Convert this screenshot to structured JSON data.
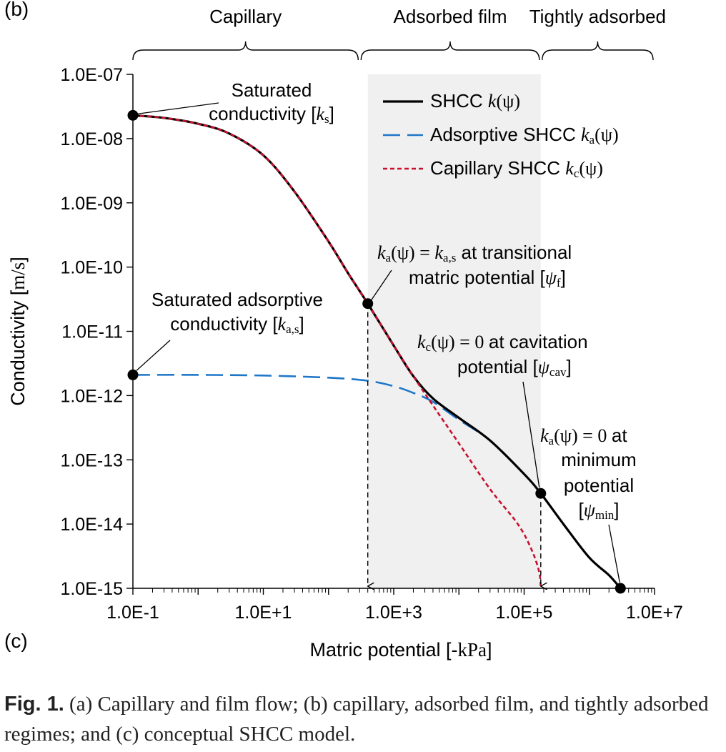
{
  "panel_label_top": "(b)",
  "panel_label_bottom": "(c)",
  "regimes": [
    {
      "label": "Capillary",
      "from": 0.1,
      "to": 300
    },
    {
      "label": "Adsorbed film",
      "from": 300,
      "to": 180000
    },
    {
      "label": "Tightly adsorbed",
      "from": 180000,
      "to": 10000000
    }
  ],
  "colors": {
    "shcc": "#000000",
    "adsorptive": "#1f77c8",
    "capillary": "#c8102e",
    "shade": "#f0f0f0"
  },
  "chart_data": {
    "type": "line",
    "title": "",
    "xlabel": "Matric potential [-kPa]",
    "ylabel": "Conductivity [m/s]",
    "xscale": "log",
    "yscale": "log",
    "xlim": [
      0.1,
      10000000
    ],
    "ylim": [
      1e-15,
      1e-07
    ],
    "x_ticks": [
      0.1,
      10,
      1000,
      100000,
      10000000
    ],
    "x_tick_labels": [
      "1.0E-1",
      "1.0E+1",
      "1.0E+3",
      "1.0E+5",
      "1.0E+7"
    ],
    "y_ticks": [
      1e-15,
      1e-14,
      1e-13,
      1e-12,
      1e-11,
      1e-10,
      1e-09,
      1e-08,
      1e-07
    ],
    "y_tick_labels": [
      "1.0E-15",
      "1.0E-14",
      "1.0E-13",
      "1.0E-12",
      "1.0E-11",
      "1.0E-10",
      "1.0E-09",
      "1.0E-08",
      "1.0E-07"
    ],
    "grid": false,
    "legend_position": "top-right",
    "shaded_region": {
      "x": [
        400,
        180000
      ]
    },
    "series": [
      {
        "name": "SHCC k(ψ)",
        "style": "solid",
        "x": [
          0.1,
          0.3,
          1,
          3,
          10,
          30,
          100,
          200,
          400,
          1000,
          2000,
          4000,
          10000,
          30000,
          100000,
          180000,
          400000,
          1000000,
          2000000,
          3000000
        ],
        "y": [
          2.3e-08,
          2.1e-08,
          1.7e-08,
          1.2e-08,
          5.5e-09,
          1.5e-09,
          2.5e-10,
          8e-11,
          2.7e-11,
          6e-12,
          2e-12,
          9e-13,
          4.5e-13,
          2e-13,
          6e-14,
          3e-14,
          1e-14,
          3e-15,
          1.6e-15,
          1e-15
        ]
      },
      {
        "name": "Adsorptive SHCC ka(ψ)",
        "style": "dashed",
        "x": [
          0.1,
          1,
          10,
          100,
          400,
          1000,
          2000,
          4000,
          10000,
          30000,
          100000,
          180000
        ],
        "y": [
          2.1e-12,
          2.1e-12,
          2.05e-12,
          1.9e-12,
          1.7e-12,
          1.4e-12,
          1.1e-12,
          8e-13,
          4.2e-13,
          2e-13,
          6e-14,
          3e-14
        ]
      },
      {
        "name": "Capillary SHCC kc(ψ)",
        "style": "dotted",
        "x": [
          0.1,
          0.3,
          1,
          3,
          10,
          30,
          100,
          200,
          400,
          1000,
          2000,
          4000,
          10000,
          30000,
          80000,
          130000,
          170000,
          180000
        ],
        "y": [
          2.3e-08,
          2.1e-08,
          1.7e-08,
          1.2e-08,
          5.5e-09,
          1.5e-09,
          2.5e-10,
          8e-11,
          2.7e-11,
          6e-12,
          2e-12,
          7e-13,
          1.8e-13,
          3.5e-14,
          1e-14,
          4e-15,
          1.8e-15,
          1e-15
        ]
      }
    ],
    "markers": [
      {
        "x": 0.1,
        "y": 2.3e-08
      },
      {
        "x": 0.1,
        "y": 2.1e-12
      },
      {
        "x": 400,
        "y": 2.7e-11
      },
      {
        "x": 180000,
        "y": 3e-14
      },
      {
        "x": 3000000,
        "y": 1e-15
      }
    ],
    "drop_lines": [
      {
        "x": 400,
        "from_y": 2.7e-11
      },
      {
        "x": 180000,
        "from_y": 3e-14
      }
    ],
    "annotations": {
      "saturated": {
        "line1": "Saturated",
        "line2": "conductivity",
        "symbol": "k",
        "sub": "s"
      },
      "saturated_adsorptive": {
        "line1": "Saturated adsorptive",
        "line2": "conductivity",
        "symbol": "k",
        "sub": "a,s"
      },
      "transitional": {
        "eq_lhs": "k",
        "eq_lhs_sub": "a",
        "eq_psi": "(ψ) =",
        "eq_rhs": "k",
        "eq_rhs_sub": "a,s",
        "line1_text": "at transitional",
        "line2": "matric potential",
        "symbol": "ψ",
        "sub": "f"
      },
      "cavitation": {
        "eq_lhs": "k",
        "eq_lhs_sub": "c",
        "eq_rest": "(ψ) = 0",
        "line1_text": "at cavitation",
        "line2": "potential",
        "symbol": "ψ",
        "sub": "cav"
      },
      "minimum": {
        "eq_lhs": "k",
        "eq_lhs_sub": "a",
        "eq_rest": "(ψ) = 0",
        "line1_text": "at",
        "line2": "minimum",
        "line3": "potential",
        "symbol": "ψ",
        "sub": "min"
      }
    }
  },
  "legend": [
    {
      "text": "SHCC",
      "sym": "k",
      "sub": "",
      "arg": "(ψ)"
    },
    {
      "text": "Adsorptive SHCC",
      "sym": "k",
      "sub": "a",
      "arg": "(ψ)"
    },
    {
      "text": "Capillary SHCC",
      "sym": "k",
      "sub": "c",
      "arg": "(ψ)"
    }
  ],
  "caption": {
    "label": "Fig. 1.",
    "text": " (a) Capillary and film flow; (b) capillary, adsorbed film, and tightly adsorbed regimes; and (c) conceptual SHCC model."
  }
}
